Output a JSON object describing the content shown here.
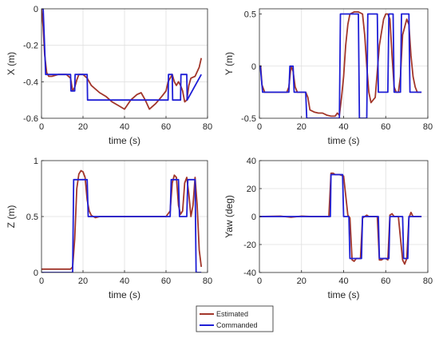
{
  "colors": {
    "estimated": "#a2362a",
    "commanded": "#1f1fd6",
    "grid": "#dfdfdf",
    "axis": "#262626"
  },
  "legend": [
    {
      "label": "Estimated",
      "color": "#a2362a"
    },
    {
      "label": "Commanded",
      "color": "#1f1fd6"
    }
  ],
  "chart_data": [
    {
      "type": "line",
      "ylabel": "X (m)",
      "xlabel": "time (s)",
      "xlim": [
        0,
        80
      ],
      "ylim": [
        -0.6,
        0
      ],
      "xticks": [
        0,
        20,
        40,
        60,
        80
      ],
      "yticks": [
        -0.6,
        -0.4,
        -0.2,
        0
      ],
      "xtick_labels": [
        "0",
        "20",
        "40",
        "60",
        "80"
      ],
      "ytick_labels": [
        "-0.6",
        "-0.4",
        "-0.2",
        "0"
      ],
      "grid": true,
      "series": [
        {
          "name": "Estimated",
          "x": [
            0,
            0.8,
            1.5,
            2.5,
            3.5,
            5,
            8,
            12,
            14,
            15,
            16,
            17,
            18,
            20,
            22,
            24,
            28,
            31,
            33,
            34,
            37,
            40,
            43,
            46,
            48,
            50,
            52,
            55,
            58,
            60,
            61,
            62,
            63,
            64,
            65,
            66,
            67,
            68,
            69,
            70,
            71,
            72,
            74,
            76,
            77
          ],
          "y": [
            0,
            -0.1,
            -0.25,
            -0.35,
            -0.37,
            -0.37,
            -0.36,
            -0.36,
            -0.38,
            -0.45,
            -0.43,
            -0.39,
            -0.36,
            -0.36,
            -0.38,
            -0.42,
            -0.46,
            -0.48,
            -0.5,
            -0.51,
            -0.53,
            -0.55,
            -0.5,
            -0.47,
            -0.46,
            -0.5,
            -0.55,
            -0.52,
            -0.48,
            -0.45,
            -0.4,
            -0.38,
            -0.36,
            -0.4,
            -0.42,
            -0.4,
            -0.42,
            -0.45,
            -0.51,
            -0.5,
            -0.42,
            -0.38,
            -0.37,
            -0.32,
            -0.27
          ]
        },
        {
          "name": "Commanded",
          "x": [
            0,
            0.8,
            2,
            14,
            14.2,
            16,
            16.2,
            22,
            22.2,
            61,
            61.2,
            63,
            63.2,
            67,
            67.2,
            70,
            70.2,
            77
          ],
          "y": [
            0,
            0,
            -0.36,
            -0.36,
            -0.45,
            -0.45,
            -0.36,
            -0.36,
            -0.5,
            -0.5,
            -0.36,
            -0.36,
            -0.5,
            -0.5,
            -0.36,
            -0.36,
            -0.5,
            -0.36
          ]
        }
      ]
    },
    {
      "type": "line",
      "ylabel": "Y (m)",
      "xlabel": "time (s)",
      "xlim": [
        0,
        80
      ],
      "ylim": [
        -0.5,
        0.55
      ],
      "xticks": [
        0,
        20,
        40,
        60,
        80
      ],
      "yticks": [
        -0.5,
        0,
        0.5
      ],
      "xtick_labels": [
        "0",
        "20",
        "40",
        "60",
        "80"
      ],
      "ytick_labels": [
        "-0.5",
        "0",
        "0.5"
      ],
      "grid": true,
      "series": [
        {
          "name": "Estimated",
          "x": [
            0,
            0.6,
            1.2,
            2.5,
            4,
            13,
            14,
            15,
            16,
            17,
            18,
            20,
            22,
            23,
            24,
            26,
            28,
            30,
            32,
            34,
            36,
            37,
            38,
            39,
            40,
            41,
            42,
            43,
            45,
            47,
            49,
            50,
            51,
            52,
            53,
            55,
            57,
            59,
            60,
            61,
            62,
            63,
            64,
            65,
            66,
            67,
            68,
            70,
            71,
            72,
            73,
            74,
            75,
            76,
            77
          ],
          "y": [
            0,
            0,
            -0.18,
            -0.25,
            -0.25,
            -0.25,
            -0.2,
            0,
            -0.05,
            -0.2,
            -0.25,
            -0.25,
            -0.25,
            -0.3,
            -0.42,
            -0.44,
            -0.45,
            -0.45,
            -0.47,
            -0.48,
            -0.48,
            -0.45,
            -0.47,
            -0.3,
            -0.1,
            0.2,
            0.4,
            0.5,
            0.52,
            0.52,
            0.5,
            0.3,
            0,
            -0.25,
            -0.35,
            -0.3,
            0.2,
            0.45,
            0.5,
            0.5,
            0.45,
            0.1,
            -0.2,
            -0.25,
            -0.25,
            -0.1,
            0.3,
            0.45,
            0.4,
            0.1,
            -0.1,
            -0.2,
            -0.25,
            -0.25,
            -0.25
          ]
        },
        {
          "name": "Commanded",
          "x": [
            0,
            0.4,
            1.5,
            14,
            14.5,
            16,
            16.5,
            22,
            22.5,
            38,
            38.5,
            47,
            47.5,
            51,
            51.5,
            56,
            56.5,
            61,
            61.5,
            63.5,
            64,
            67,
            67.5,
            71,
            71.5,
            77
          ],
          "y": [
            0,
            0,
            -0.25,
            -0.25,
            0,
            0,
            -0.25,
            -0.25,
            -0.5,
            -0.5,
            0.5,
            0.5,
            -0.5,
            -0.5,
            0.5,
            0.5,
            -0.25,
            -0.25,
            0.5,
            0.5,
            -0.25,
            -0.25,
            0.5,
            0.5,
            -0.25,
            -0.25
          ]
        }
      ]
    },
    {
      "type": "line",
      "ylabel": "Z (m)",
      "xlabel": "time (s)",
      "xlim": [
        0,
        80
      ],
      "ylim": [
        0,
        1
      ],
      "xticks": [
        0,
        20,
        40,
        60,
        80
      ],
      "yticks": [
        0,
        0.5,
        1
      ],
      "xtick_labels": [
        "0",
        "20",
        "40",
        "60",
        "80"
      ],
      "ytick_labels": [
        "0",
        "0.5",
        "1"
      ],
      "grid": true,
      "series": [
        {
          "name": "Estimated",
          "x": [
            0,
            14,
            15,
            16,
            17,
            18,
            19,
            20,
            21,
            22,
            23,
            24,
            25,
            26,
            28,
            30,
            40,
            50,
            60,
            62,
            63,
            64,
            65,
            66,
            67,
            68,
            69,
            70,
            71,
            72,
            73,
            74,
            75,
            76,
            77
          ],
          "y": [
            0.03,
            0.03,
            0.05,
            0.3,
            0.75,
            0.88,
            0.91,
            0.9,
            0.85,
            0.65,
            0.55,
            0.51,
            0.5,
            0.49,
            0.5,
            0.5,
            0.5,
            0.5,
            0.5,
            0.55,
            0.8,
            0.87,
            0.85,
            0.6,
            0.52,
            0.55,
            0.8,
            0.85,
            0.7,
            0.5,
            0.6,
            0.85,
            0.6,
            0.2,
            0.05
          ]
        },
        {
          "name": "Commanded",
          "x": [
            0,
            15,
            15.5,
            22,
            22.5,
            62,
            62.5,
            66,
            66.5,
            70,
            70.5,
            74,
            74.5,
            77
          ],
          "y": [
            0,
            0,
            0.83,
            0.83,
            0.5,
            0.5,
            0.83,
            0.83,
            0.5,
            0.5,
            0.83,
            0.83,
            0,
            0
          ]
        }
      ]
    },
    {
      "type": "line",
      "ylabel": "Yaw (deg)",
      "xlabel": "time (s)",
      "xlim": [
        0,
        80
      ],
      "ylim": [
        -40,
        40
      ],
      "xticks": [
        0,
        20,
        40,
        60,
        80
      ],
      "yticks": [
        -40,
        -20,
        0,
        20,
        40
      ],
      "xtick_labels": [
        "0",
        "20",
        "40",
        "60",
        "80"
      ],
      "ytick_labels": [
        "-40",
        "-20",
        "0",
        "20",
        "40"
      ],
      "grid": true,
      "series": [
        {
          "name": "Estimated",
          "x": [
            0,
            10,
            15,
            20,
            25,
            30,
            33,
            34,
            35,
            36,
            37,
            38,
            40,
            42,
            43,
            44,
            45,
            46,
            47,
            48,
            49,
            50,
            51,
            52,
            54,
            56,
            57,
            58,
            59,
            60,
            61,
            62,
            63,
            64,
            65,
            66,
            68,
            69,
            70,
            71,
            72,
            73,
            74,
            76,
            77
          ],
          "y": [
            0,
            0.3,
            -0.5,
            0.3,
            0,
            0,
            0,
            31,
            31,
            30,
            30,
            30,
            29,
            1,
            -1,
            -31,
            -32,
            -30,
            -30,
            -30,
            -1,
            0,
            1,
            0,
            0,
            0,
            -31,
            -31,
            -30,
            -30,
            -31,
            1,
            2,
            0,
            0,
            0,
            -31,
            -34,
            -30,
            -1,
            3,
            0,
            0,
            0,
            0
          ]
        },
        {
          "name": "Commanded",
          "x": [
            0,
            33.7,
            34,
            39.5,
            40,
            42.5,
            43,
            48.5,
            49,
            56.5,
            57,
            61.5,
            62,
            68,
            68.5,
            70.5,
            71,
            77
          ],
          "y": [
            0,
            0,
            30,
            30,
            0,
            0,
            -30,
            -30,
            0,
            0,
            -30,
            -30,
            0,
            0,
            -30,
            -30,
            0,
            0
          ]
        }
      ]
    }
  ]
}
